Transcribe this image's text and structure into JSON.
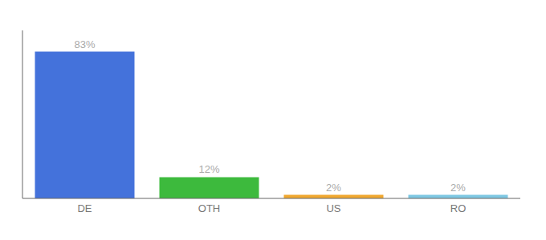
{
  "chart_data": {
    "type": "bar",
    "categories": [
      "DE",
      "OTH",
      "US",
      "RO"
    ],
    "values": [
      83,
      12,
      2,
      2
    ],
    "value_labels": [
      "83%",
      "12%",
      "2%",
      "2%"
    ],
    "colors": [
      "#4472db",
      "#3dba3d",
      "#f0a830",
      "#7ec8e3"
    ],
    "ylim": [
      0,
      95
    ],
    "grid": false,
    "data_labels": true,
    "tick_labels": "x"
  }
}
